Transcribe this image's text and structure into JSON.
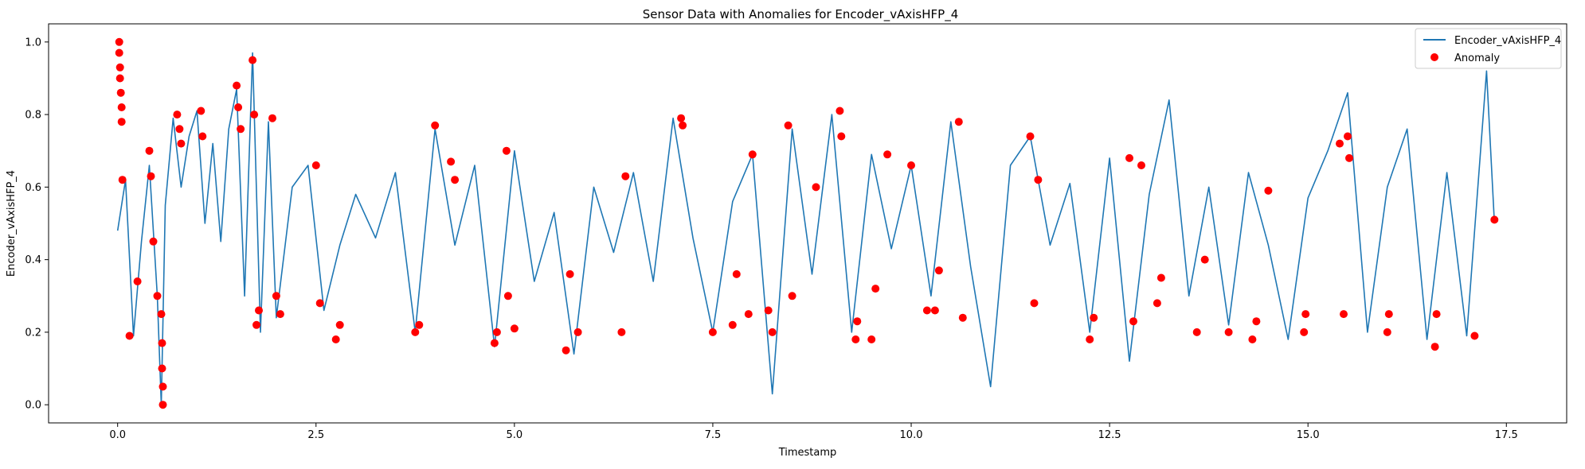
{
  "chart_data": {
    "type": "line",
    "title": "Sensor Data with Anomalies for Encoder_vAxisHFP_4",
    "xlabel": "Timestamp",
    "ylabel": "Encoder_vAxisHFP_4",
    "xlim": [
      -0.87,
      18.26
    ],
    "ylim": [
      -0.05,
      1.05
    ],
    "xticks": [
      0.0,
      2.5,
      5.0,
      7.5,
      10.0,
      12.5,
      15.0,
      17.5
    ],
    "xtick_labels": [
      "0.0",
      "2.5",
      "5.0",
      "7.5",
      "10.0",
      "12.5",
      "15.0",
      "17.5"
    ],
    "yticks": [
      0.0,
      0.2,
      0.4,
      0.6,
      0.8,
      1.0
    ],
    "ytick_labels": [
      "0.0",
      "0.2",
      "0.4",
      "0.6",
      "0.8",
      "1.0"
    ],
    "grid": false,
    "legend_position": "top-right",
    "series": [
      {
        "name": "Encoder_vAxisHFP_4",
        "kind": "line",
        "color": "#1f77b4",
        "x": [
          0.0,
          0.1,
          0.2,
          0.3,
          0.4,
          0.5,
          0.55,
          0.6,
          0.7,
          0.8,
          0.9,
          1.0,
          1.1,
          1.2,
          1.3,
          1.4,
          1.5,
          1.6,
          1.7,
          1.8,
          1.9,
          2.0,
          2.2,
          2.4,
          2.6,
          2.8,
          3.0,
          3.25,
          3.5,
          3.75,
          4.0,
          4.25,
          4.5,
          4.75,
          5.0,
          5.25,
          5.5,
          5.75,
          6.0,
          6.25,
          6.5,
          6.75,
          7.0,
          7.25,
          7.5,
          7.75,
          8.0,
          8.25,
          8.5,
          8.75,
          9.0,
          9.25,
          9.5,
          9.75,
          10.0,
          10.25,
          10.5,
          10.75,
          11.0,
          11.25,
          11.5,
          11.75,
          12.0,
          12.25,
          12.5,
          12.75,
          13.0,
          13.25,
          13.5,
          13.75,
          14.0,
          14.25,
          14.5,
          14.75,
          15.0,
          15.25,
          15.5,
          15.75,
          16.0,
          16.25,
          16.5,
          16.75,
          17.0,
          17.25,
          17.35
        ],
        "y": [
          0.48,
          0.62,
          0.19,
          0.45,
          0.66,
          0.3,
          0.0,
          0.55,
          0.79,
          0.6,
          0.74,
          0.81,
          0.5,
          0.72,
          0.45,
          0.76,
          0.87,
          0.3,
          0.97,
          0.2,
          0.78,
          0.24,
          0.6,
          0.66,
          0.26,
          0.44,
          0.58,
          0.46,
          0.64,
          0.2,
          0.76,
          0.44,
          0.66,
          0.16,
          0.7,
          0.34,
          0.53,
          0.14,
          0.6,
          0.42,
          0.64,
          0.34,
          0.79,
          0.46,
          0.2,
          0.56,
          0.69,
          0.03,
          0.76,
          0.36,
          0.8,
          0.2,
          0.69,
          0.43,
          0.66,
          0.3,
          0.78,
          0.38,
          0.05,
          0.66,
          0.74,
          0.44,
          0.61,
          0.2,
          0.68,
          0.12,
          0.58,
          0.84,
          0.3,
          0.6,
          0.22,
          0.64,
          0.44,
          0.18,
          0.57,
          0.7,
          0.86,
          0.2,
          0.6,
          0.76,
          0.18,
          0.64,
          0.19,
          0.92,
          0.5
        ]
      },
      {
        "name": "Anomaly",
        "kind": "scatter",
        "color": "#ff0000",
        "x": [
          0.02,
          0.02,
          0.03,
          0.03,
          0.04,
          0.05,
          0.05,
          0.06,
          0.15,
          0.25,
          0.4,
          0.42,
          0.45,
          0.5,
          0.55,
          0.56,
          0.56,
          0.57,
          0.57,
          0.75,
          0.78,
          0.8,
          1.05,
          1.07,
          1.5,
          1.52,
          1.55,
          1.7,
          1.72,
          1.75,
          1.78,
          1.95,
          2.0,
          2.05,
          2.5,
          2.55,
          2.75,
          2.8,
          3.75,
          3.8,
          4.0,
          4.2,
          4.25,
          4.75,
          4.78,
          4.9,
          4.92,
          5.0,
          5.65,
          5.7,
          5.8,
          6.35,
          6.4,
          7.1,
          7.12,
          7.5,
          7.75,
          7.8,
          7.95,
          8.0,
          8.2,
          8.25,
          8.45,
          8.5,
          8.8,
          9.1,
          9.12,
          9.3,
          9.32,
          9.5,
          9.55,
          9.7,
          10.0,
          10.2,
          10.3,
          10.35,
          10.6,
          10.65,
          11.5,
          11.55,
          11.6,
          12.25,
          12.3,
          12.75,
          12.8,
          12.9,
          13.1,
          13.15,
          13.6,
          13.7,
          14.0,
          14.3,
          14.35,
          14.5,
          14.95,
          14.97,
          15.4,
          15.45,
          15.5,
          15.52,
          16.0,
          16.02,
          16.6,
          16.62,
          17.1,
          17.35
        ],
        "y": [
          1.0,
          0.97,
          0.93,
          0.9,
          0.86,
          0.82,
          0.78,
          0.62,
          0.19,
          0.34,
          0.7,
          0.63,
          0.45,
          0.3,
          0.25,
          0.17,
          0.1,
          0.05,
          0.0,
          0.8,
          0.76,
          0.72,
          0.81,
          0.74,
          0.88,
          0.82,
          0.76,
          0.95,
          0.8,
          0.22,
          0.26,
          0.79,
          0.3,
          0.25,
          0.66,
          0.28,
          0.18,
          0.22,
          0.2,
          0.22,
          0.77,
          0.67,
          0.62,
          0.17,
          0.2,
          0.7,
          0.3,
          0.21,
          0.15,
          0.36,
          0.2,
          0.2,
          0.63,
          0.79,
          0.77,
          0.2,
          0.22,
          0.36,
          0.25,
          0.69,
          0.26,
          0.2,
          0.77,
          0.3,
          0.6,
          0.81,
          0.74,
          0.18,
          0.23,
          0.18,
          0.32,
          0.69,
          0.66,
          0.26,
          0.26,
          0.37,
          0.78,
          0.24,
          0.74,
          0.28,
          0.62,
          0.18,
          0.24,
          0.68,
          0.23,
          0.66,
          0.28,
          0.35,
          0.2,
          0.4,
          0.2,
          0.18,
          0.23,
          0.59,
          0.2,
          0.25,
          0.72,
          0.25,
          0.74,
          0.68,
          0.2,
          0.25,
          0.16,
          0.25,
          0.19,
          0.51
        ]
      }
    ]
  }
}
